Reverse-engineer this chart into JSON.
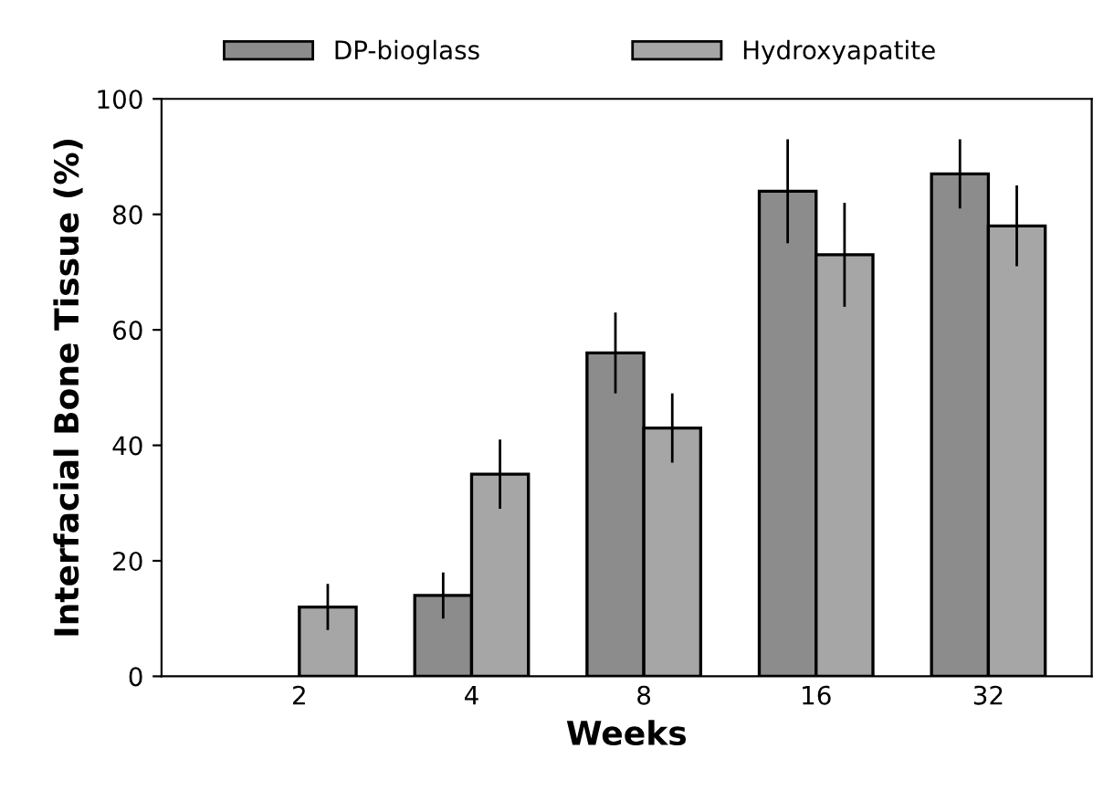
{
  "chart_data": {
    "type": "bar",
    "xlabel": "Weeks",
    "ylabel": "Interfacial Bone Tissue (%)",
    "categories": [
      "2",
      "4",
      "8",
      "16",
      "32"
    ],
    "series": [
      {
        "name": "DP-bioglass",
        "color": "#8c8c8c",
        "values": [
          null,
          14,
          56,
          84,
          87
        ],
        "errors": [
          null,
          4,
          7,
          9,
          6
        ]
      },
      {
        "name": "Hydroxyapatite",
        "color": "#a6a6a6",
        "values": [
          12,
          35,
          43,
          73,
          78
        ],
        "errors": [
          4,
          6,
          6,
          9,
          7
        ]
      }
    ],
    "ylim": [
      0,
      100
    ],
    "yticks": [
      0,
      20,
      40,
      60,
      80,
      100
    ],
    "grid": false,
    "legend": "top"
  }
}
